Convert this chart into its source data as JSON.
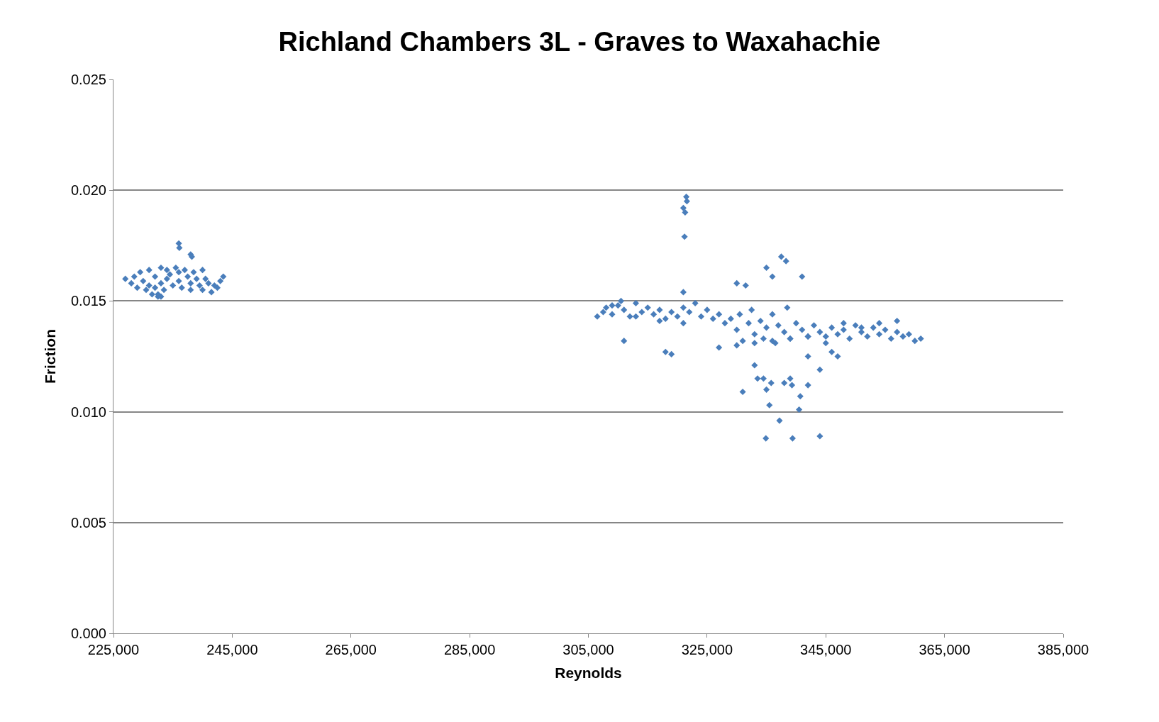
{
  "chart_data": {
    "type": "scatter",
    "title": "Richland Chambers 3L - Graves to Waxahachie",
    "xlabel": "Reynolds",
    "ylabel": "Friction",
    "xlim": [
      225000,
      385000
    ],
    "xticks": [
      {
        "value": 225000,
        "label": "225,000"
      },
      {
        "value": 245000,
        "label": "245,000"
      },
      {
        "value": 265000,
        "label": "265,000"
      },
      {
        "value": 285000,
        "label": "285,000"
      },
      {
        "value": 305000,
        "label": "305,000"
      },
      {
        "value": 325000,
        "label": "325,000"
      },
      {
        "value": 345000,
        "label": "345,000"
      },
      {
        "value": 365000,
        "label": "365,000"
      },
      {
        "value": 385000,
        "label": "385,000"
      }
    ],
    "ylim": [
      0,
      0.025
    ],
    "yticks": [
      {
        "value": 0,
        "label": "0.000"
      },
      {
        "value": 0.005,
        "label": "0.005"
      },
      {
        "value": 0.01,
        "label": "0.010"
      },
      {
        "value": 0.015,
        "label": "0.015"
      },
      {
        "value": 0.02,
        "label": "0.020"
      },
      {
        "value": 0.025,
        "label": "0.025"
      }
    ],
    "grid": "y",
    "marker": "diamond",
    "legend": false,
    "series": [
      {
        "color": "#4a7ebb",
        "x": [
          227000,
          228000,
          228500,
          229000,
          229500,
          230000,
          230500,
          231000,
          231000,
          231500,
          232000,
          232000,
          232500,
          233000,
          233000,
          233500,
          234000,
          234000,
          234500,
          235000,
          235500,
          236000,
          236000,
          236500,
          237000,
          237500,
          238000,
          238000,
          238500,
          239000,
          239500,
          240000,
          240500,
          241000,
          241500,
          242000,
          242500,
          243000,
          243500,
          236000,
          236100,
          238000,
          238200,
          232500,
          233000,
          240000,
          306500,
          307500,
          308000,
          309000,
          310000,
          310500,
          311000,
          312000,
          313000,
          314000,
          315000,
          316000,
          317000,
          318000,
          319000,
          320000,
          321000,
          322000,
          323000,
          324000,
          325000,
          326000,
          327000,
          328000,
          329000,
          330000,
          330500,
          331000,
          332000,
          332500,
          333000,
          334000,
          334500,
          335000,
          336000,
          336500,
          337000,
          338000,
          338500,
          339000,
          340000,
          341000,
          342000,
          343000,
          344000,
          345000,
          346000,
          347000,
          348000,
          349000,
          350000,
          351000,
          352000,
          353000,
          354000,
          355000,
          356000,
          357000,
          358000,
          359000,
          360000,
          361000,
          330000,
          333000,
          336000,
          339000,
          342000,
          345000,
          348000,
          351000,
          354000,
          357000,
          309000,
          313000,
          317000,
          321000,
          321500,
          321600,
          321000,
          321300,
          321200,
          337500,
          338300,
          335000,
          336000,
          341000,
          330000,
          331500,
          321000,
          311000,
          318000,
          319000,
          342000,
          331000,
          333000,
          333500,
          334500,
          335000,
          335800,
          337200,
          338000,
          339000,
          339300,
          340500,
          340700,
          335500,
          334900,
          339400,
          344000,
          344000,
          342000,
          327000,
          346000,
          347000
        ],
        "values": [
          0.016,
          0.0158,
          0.0161,
          0.0156,
          0.0163,
          0.0159,
          0.0155,
          0.0164,
          0.0157,
          0.0153,
          0.0161,
          0.0156,
          0.0152,
          0.0165,
          0.0158,
          0.0155,
          0.0164,
          0.016,
          0.0162,
          0.0157,
          0.0165,
          0.0159,
          0.0163,
          0.0156,
          0.0164,
          0.0161,
          0.0158,
          0.0155,
          0.0163,
          0.016,
          0.0157,
          0.0155,
          0.016,
          0.0158,
          0.0154,
          0.0157,
          0.0156,
          0.0159,
          0.0161,
          0.0176,
          0.0174,
          0.0171,
          0.017,
          0.0153,
          0.0152,
          0.0164,
          0.0143,
          0.0145,
          0.0147,
          0.0144,
          0.0148,
          0.015,
          0.0146,
          0.0143,
          0.0149,
          0.0145,
          0.0147,
          0.0144,
          0.0146,
          0.0142,
          0.0145,
          0.0143,
          0.0147,
          0.0145,
          0.0149,
          0.0143,
          0.0146,
          0.0142,
          0.0144,
          0.014,
          0.0142,
          0.0137,
          0.0144,
          0.0132,
          0.014,
          0.0146,
          0.0135,
          0.0141,
          0.0133,
          0.0138,
          0.0144,
          0.0131,
          0.0139,
          0.0136,
          0.0147,
          0.0133,
          0.014,
          0.0137,
          0.0134,
          0.0139,
          0.0136,
          0.0134,
          0.0138,
          0.0135,
          0.0137,
          0.0133,
          0.0139,
          0.0136,
          0.0134,
          0.0138,
          0.0135,
          0.0137,
          0.0133,
          0.0136,
          0.0134,
          0.0135,
          0.0132,
          0.0133,
          0.013,
          0.0131,
          0.0132,
          0.0133,
          0.0134,
          0.0131,
          0.014,
          0.0138,
          0.014,
          0.0141,
          0.0148,
          0.0143,
          0.0141,
          0.014,
          0.0197,
          0.0195,
          0.0192,
          0.019,
          0.0179,
          0.017,
          0.0168,
          0.0165,
          0.0161,
          0.0161,
          0.0158,
          0.0157,
          0.0154,
          0.0132,
          0.0127,
          0.0126,
          0.0125,
          0.0109,
          0.0121,
          0.0115,
          0.0115,
          0.011,
          0.0113,
          0.0096,
          0.0113,
          0.0115,
          0.0112,
          0.0101,
          0.0107,
          0.0103,
          0.0088,
          0.0088,
          0.0089,
          0.0119,
          0.0112,
          0.0129,
          0.0127,
          0.0125
        ]
      }
    ]
  }
}
